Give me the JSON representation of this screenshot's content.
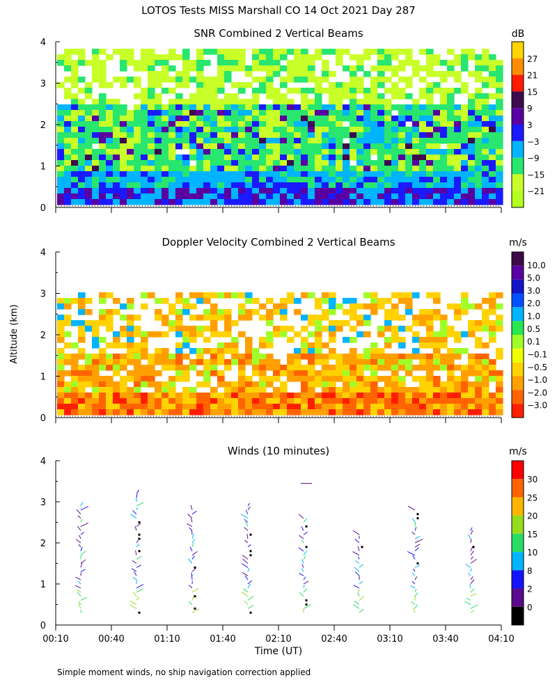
{
  "title": "LOTOS Tests MISS Marshall CO  14 Oct 2021 Day 287",
  "y_axis_label": "Altitude (km)",
  "x_axis_label": "Time (UT)",
  "x_tick_labels": [
    "00:10",
    "00:40",
    "01:10",
    "01:40",
    "02:10",
    "02:40",
    "03:10",
    "03:40",
    "04:10"
  ],
  "footer_note": "Simple moment winds, no ship navigation correction applied",
  "chart_data": [
    {
      "type": "heatmap",
      "title": "SNR Combined 2 Vertical Beams",
      "xlabel": "",
      "ylabel": "",
      "xlim": [
        "00:10",
        "04:10"
      ],
      "ylim": [
        0,
        4
      ],
      "y_ticks": [
        0,
        1,
        2,
        3,
        4
      ],
      "colorbar": {
        "unit": "dB",
        "labels": [
          "27",
          "21",
          "15",
          "9",
          "3",
          "−3",
          "−9",
          "−15",
          "−21"
        ],
        "colors": [
          "#ffd400",
          "#ff8c00",
          "#ff1a00",
          "#3d0a4f",
          "#5a00a0",
          "#1a1aff",
          "#00b4ff",
          "#28e66e",
          "#c8ff28",
          "#b4ff1e"
        ]
      },
      "layers": [
        {
          "from_km": 0.2,
          "to_km": 0.6,
          "value_db": -3
        },
        {
          "from_km": 0.6,
          "to_km": 1.0,
          "value_db": -9
        },
        {
          "from_km": 1.0,
          "to_km": 2.6,
          "value_db": -15
        },
        {
          "from_km": 2.6,
          "to_km": 3.9,
          "value_db": -21
        }
      ]
    },
    {
      "type": "heatmap",
      "title": "Doppler Velocity Combined 2 Vertical Beams",
      "xlabel": "",
      "ylabel": "Altitude (km)",
      "xlim": [
        "00:10",
        "04:10"
      ],
      "ylim": [
        0,
        4
      ],
      "y_ticks": [
        0,
        1,
        2,
        3,
        4
      ],
      "colorbar": {
        "unit": "m/s",
        "labels": [
          "10.0",
          "5.0",
          "3.0",
          "2.0",
          "1.0",
          "0.5",
          "0.1",
          "−0.1",
          "−0.5",
          "−1.0",
          "−2.0",
          "−3.0"
        ],
        "colors": [
          "#3c0a46",
          "#5a00a0",
          "#1414c8",
          "#0050ff",
          "#00b4ff",
          "#28e650",
          "#a0ff28",
          "#f0ff00",
          "#ffd200",
          "#ffa000",
          "#ff6400",
          "#ff1e00"
        ]
      },
      "layers": [
        {
          "from_km": 0.2,
          "to_km": 0.7,
          "value_ms": -2.0
        },
        {
          "from_km": 0.7,
          "to_km": 1.6,
          "value_ms": -1.0
        },
        {
          "from_km": 1.6,
          "to_km": 3.1,
          "value_ms": -0.5
        }
      ]
    },
    {
      "type": "scatter",
      "title": "Winds (10 minutes)",
      "xlabel": "Time (UT)",
      "ylabel": "",
      "xlim": [
        "00:10",
        "04:10"
      ],
      "ylim": [
        0,
        4
      ],
      "y_ticks": [
        0,
        1,
        2,
        3,
        4
      ],
      "colorbar": {
        "unit": "m/s",
        "labels": [
          "30",
          "25",
          "20",
          "15",
          "10",
          "8",
          "2",
          "0"
        ],
        "colors": [
          "#ff0000",
          "#ff6400",
          "#ffb400",
          "#96dc1e",
          "#28dc64",
          "#00b4ff",
          "#1414ff",
          "#5a0a8c",
          "#000000"
        ]
      },
      "profile_times": [
        "00:25",
        "00:55",
        "01:25",
        "01:55",
        "02:25",
        "02:55",
        "03:25",
        "03:55"
      ],
      "profile_top_km": [
        2.95,
        3.3,
        2.9,
        2.95,
        2.65,
        2.3,
        2.9,
        2.35
      ],
      "isolated_barb": {
        "time": "02:22",
        "km": 3.45
      }
    }
  ]
}
